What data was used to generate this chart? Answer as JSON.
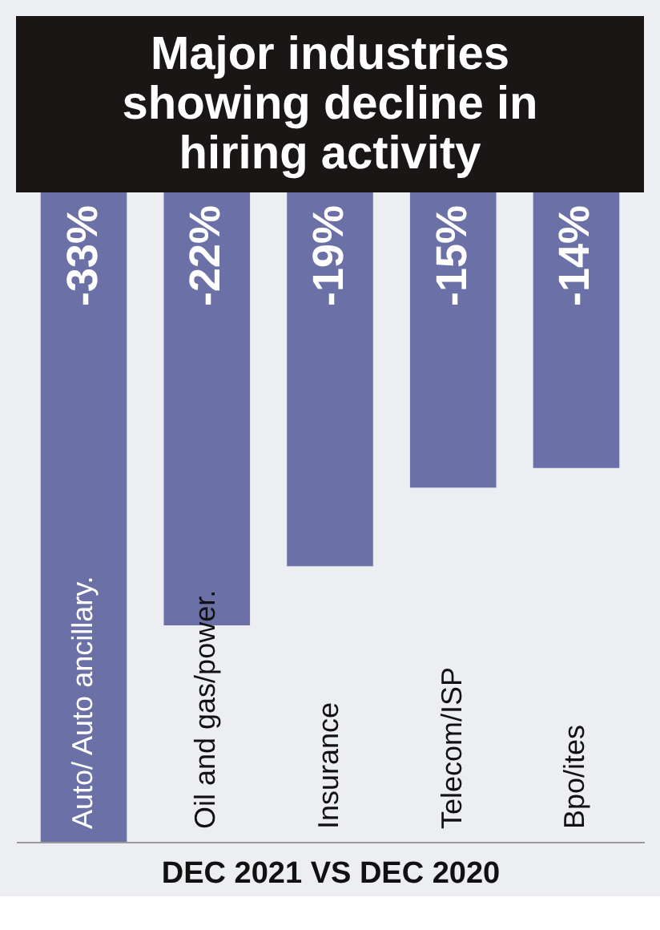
{
  "chart_data": {
    "type": "bar",
    "title": "Major industries showing decline in hiring activity",
    "xlabel": "DEC 2021 VS DEC 2020",
    "categories": [
      "Auto/ Auto ancillary.",
      "Oil and gas/power.",
      "Insurance",
      "Telecom/ISP",
      "Bpo/ites"
    ],
    "values": [
      -33,
      -22,
      -19,
      -15,
      -14
    ],
    "value_labels": [
      "-33%",
      "-22%",
      "-19%",
      "-15%",
      "-14%"
    ],
    "color": "#6b70a6",
    "tick_labels": false,
    "grid": false
  }
}
